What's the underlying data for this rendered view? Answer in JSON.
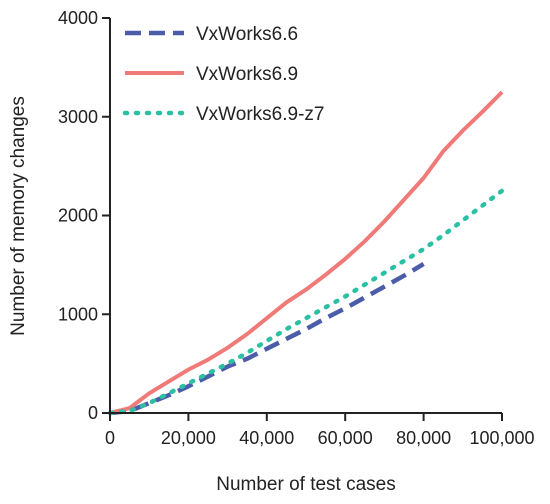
{
  "chart_data": {
    "type": "line",
    "title": "",
    "xlabel": "Number of test cases",
    "ylabel": "Number of memory changes",
    "xlim": [
      0,
      100000
    ],
    "ylim": [
      0,
      4000
    ],
    "x_ticks": [
      0,
      20000,
      40000,
      60000,
      80000,
      100000
    ],
    "x_tick_labels": [
      "0",
      "20,000",
      "40,000",
      "60,000",
      "80,000",
      "100,000"
    ],
    "y_ticks": [
      0,
      1000,
      2000,
      3000,
      4000
    ],
    "y_tick_labels": [
      "0",
      "1000",
      "2000",
      "3000",
      "4000"
    ],
    "grid": false,
    "legend_position": "top-left",
    "series": [
      {
        "name": "VxWorks6.6",
        "color": "#4b5ca8",
        "style": "dashed",
        "x": [
          0,
          5000,
          10000,
          15000,
          20000,
          25000,
          30000,
          35000,
          40000,
          45000,
          50000,
          55000,
          60000,
          65000,
          70000,
          75000,
          80000
        ],
        "y": [
          0,
          20,
          100,
          180,
          270,
          370,
          470,
          550,
          650,
          750,
          850,
          960,
          1060,
          1170,
          1280,
          1390,
          1510
        ]
      },
      {
        "name": "VxWorks6.9",
        "color": "#f07a78",
        "style": "solid",
        "x": [
          0,
          5000,
          10000,
          15000,
          20000,
          25000,
          30000,
          35000,
          40000,
          45000,
          50000,
          55000,
          60000,
          65000,
          70000,
          75000,
          80000,
          85000,
          90000,
          95000,
          100000
        ],
        "y": [
          0,
          50,
          200,
          320,
          440,
          540,
          660,
          800,
          960,
          1120,
          1250,
          1400,
          1560,
          1740,
          1940,
          2160,
          2380,
          2650,
          2860,
          3050,
          3250
        ]
      },
      {
        "name": "VxWorks6.9-z7",
        "color": "#2bbfa4",
        "style": "dotted",
        "x": [
          0,
          5000,
          10000,
          15000,
          20000,
          25000,
          30000,
          35000,
          40000,
          45000,
          50000,
          55000,
          60000,
          65000,
          70000,
          75000,
          80000,
          85000,
          90000,
          95000,
          100000
        ],
        "y": [
          0,
          20,
          100,
          200,
          300,
          400,
          500,
          610,
          730,
          850,
          960,
          1070,
          1180,
          1300,
          1420,
          1540,
          1660,
          1800,
          1950,
          2100,
          2250
        ]
      }
    ]
  }
}
